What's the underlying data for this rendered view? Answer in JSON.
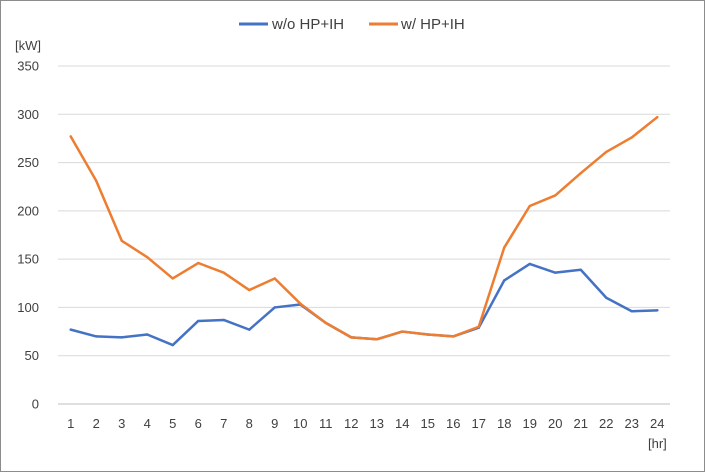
{
  "chart_data": {
    "type": "line",
    "x": [
      1,
      2,
      3,
      4,
      5,
      6,
      7,
      8,
      9,
      10,
      11,
      12,
      13,
      14,
      15,
      16,
      17,
      18,
      19,
      20,
      21,
      22,
      23,
      24
    ],
    "series": [
      {
        "name": "w/o HP+IH",
        "color": "#4472C4",
        "values": [
          77,
          70,
          69,
          72,
          61,
          86,
          87,
          77,
          100,
          103,
          84,
          69,
          67,
          75,
          72,
          70,
          79,
          128,
          145,
          136,
          139,
          110,
          96,
          97
        ]
      },
      {
        "name": "w/ HP+IH",
        "color": "#ED7D31",
        "values": [
          277,
          231,
          169,
          152,
          130,
          146,
          136,
          118,
          130,
          104,
          84,
          69,
          67,
          75,
          72,
          70,
          80,
          162,
          205,
          216,
          239,
          261,
          276,
          297
        ]
      }
    ],
    "ylabel": "[kW]",
    "xlabel": "[hr]",
    "ylim": [
      0,
      350
    ],
    "yticks": [
      0,
      50,
      100,
      150,
      200,
      250,
      300,
      350
    ],
    "xticks": [
      "1",
      "2",
      "3",
      "4",
      "5",
      "6",
      "7",
      "8",
      "9",
      "10",
      "11",
      "12",
      "13",
      "14",
      "15",
      "16",
      "17",
      "18",
      "19",
      "20",
      "21",
      "22",
      "23",
      "24"
    ],
    "grid": true,
    "legend_position": "top-center"
  }
}
